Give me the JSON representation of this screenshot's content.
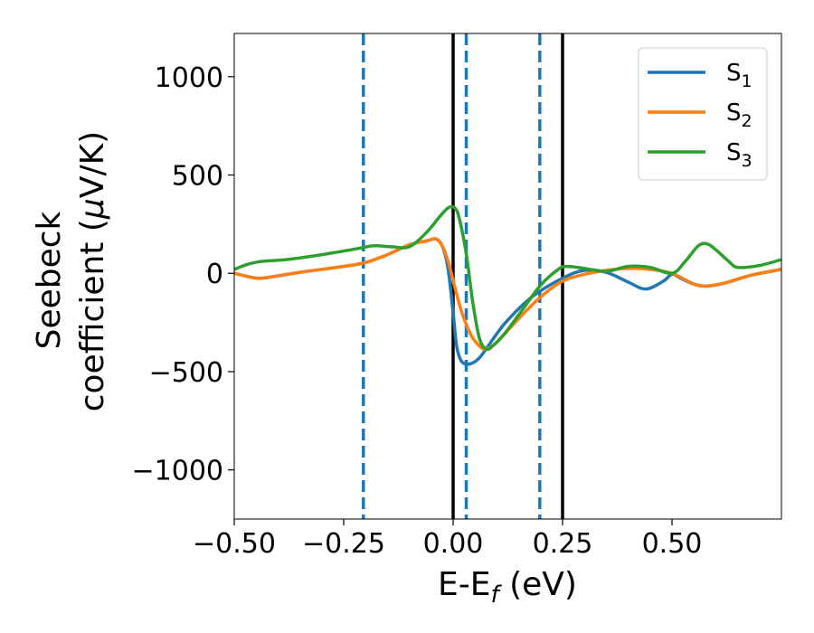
{
  "chart_data": {
    "type": "line",
    "title": "",
    "xlabel": "E-E_f (eV)",
    "xlabel_main": "E-E",
    "xlabel_sub": "f",
    "xlabel_unit": " (eV)",
    "ylabel_line1": "Seebeck",
    "ylabel_line2_text": "coefficient  (",
    "ylabel_mu": "μ",
    "ylabel_unit": "V/K)",
    "xlim": [
      -0.5,
      0.75
    ],
    "ylim": [
      -1250,
      1220
    ],
    "xticks": [
      -0.5,
      -0.25,
      0.0,
      0.25,
      0.5
    ],
    "xtick_labels": [
      "−0.50",
      "−0.25",
      "0.00",
      "0.25",
      "0.50"
    ],
    "yticks": [
      1000,
      500,
      0,
      -500,
      -1000
    ],
    "ytick_labels": [
      "1000",
      "500",
      "0",
      "−500",
      "−1000"
    ],
    "legend_position": "top-right",
    "series": [
      {
        "name": "S_1",
        "label_main": "S",
        "label_sub": "1",
        "color": "#1f77b4",
        "points": [
          [
            -0.5,
            0
          ],
          [
            -0.45,
            -25
          ],
          [
            -0.42,
            -20
          ],
          [
            -0.35,
            5
          ],
          [
            -0.25,
            35
          ],
          [
            -0.2,
            55
          ],
          [
            -0.15,
            95
          ],
          [
            -0.1,
            145
          ],
          [
            -0.06,
            165
          ],
          [
            -0.04,
            175
          ],
          [
            -0.025,
            140
          ],
          [
            -0.012,
            30
          ],
          [
            0.0,
            -200
          ],
          [
            0.008,
            -370
          ],
          [
            0.02,
            -450
          ],
          [
            0.04,
            -460
          ],
          [
            0.06,
            -430
          ],
          [
            0.08,
            -370
          ],
          [
            0.12,
            -250
          ],
          [
            0.18,
            -120
          ],
          [
            0.25,
            -25
          ],
          [
            0.3,
            15
          ],
          [
            0.35,
            5
          ],
          [
            0.4,
            -45
          ],
          [
            0.44,
            -80
          ],
          [
            0.48,
            -40
          ],
          [
            0.5,
            -5
          ],
          [
            0.52,
            -25
          ],
          [
            0.55,
            -55
          ],
          [
            0.58,
            -65
          ],
          [
            0.62,
            -50
          ],
          [
            0.68,
            -10
          ],
          [
            0.75,
            20
          ]
        ]
      },
      {
        "name": "S_2",
        "label_main": "S",
        "label_sub": "2",
        "color": "#ff7f0e",
        "points": [
          [
            -0.5,
            0
          ],
          [
            -0.45,
            -25
          ],
          [
            -0.42,
            -20
          ],
          [
            -0.35,
            5
          ],
          [
            -0.25,
            35
          ],
          [
            -0.2,
            55
          ],
          [
            -0.15,
            95
          ],
          [
            -0.1,
            145
          ],
          [
            -0.06,
            165
          ],
          [
            -0.04,
            175
          ],
          [
            -0.025,
            140
          ],
          [
            -0.01,
            50
          ],
          [
            0.005,
            -80
          ],
          [
            0.02,
            -200
          ],
          [
            0.04,
            -310
          ],
          [
            0.06,
            -370
          ],
          [
            0.075,
            -385
          ],
          [
            0.1,
            -350
          ],
          [
            0.15,
            -230
          ],
          [
            0.2,
            -120
          ],
          [
            0.25,
            -40
          ],
          [
            0.3,
            -5
          ],
          [
            0.35,
            15
          ],
          [
            0.4,
            25
          ],
          [
            0.45,
            20
          ],
          [
            0.5,
            0
          ],
          [
            0.55,
            -55
          ],
          [
            0.58,
            -65
          ],
          [
            0.62,
            -50
          ],
          [
            0.68,
            -10
          ],
          [
            0.75,
            20
          ]
        ]
      },
      {
        "name": "S_3",
        "label_main": "S",
        "label_sub": "3",
        "color": "#2ca02c",
        "points": [
          [
            -0.5,
            20
          ],
          [
            -0.47,
            45
          ],
          [
            -0.44,
            60
          ],
          [
            -0.38,
            70
          ],
          [
            -0.3,
            95
          ],
          [
            -0.22,
            125
          ],
          [
            -0.18,
            140
          ],
          [
            -0.14,
            135
          ],
          [
            -0.1,
            135
          ],
          [
            -0.06,
            210
          ],
          [
            -0.03,
            290
          ],
          [
            -0.01,
            335
          ],
          [
            0.005,
            330
          ],
          [
            0.015,
            270
          ],
          [
            0.03,
            100
          ],
          [
            0.045,
            -150
          ],
          [
            0.06,
            -330
          ],
          [
            0.075,
            -385
          ],
          [
            0.09,
            -370
          ],
          [
            0.12,
            -300
          ],
          [
            0.16,
            -180
          ],
          [
            0.2,
            -60
          ],
          [
            0.24,
            20
          ],
          [
            0.26,
            35
          ],
          [
            0.3,
            25
          ],
          [
            0.35,
            10
          ],
          [
            0.4,
            35
          ],
          [
            0.45,
            30
          ],
          [
            0.5,
            0
          ],
          [
            0.53,
            60
          ],
          [
            0.56,
            140
          ],
          [
            0.58,
            150
          ],
          [
            0.6,
            120
          ],
          [
            0.63,
            60
          ],
          [
            0.65,
            30
          ],
          [
            0.7,
            40
          ],
          [
            0.75,
            70
          ]
        ]
      }
    ],
    "vlines": [
      {
        "x": -0.205,
        "color": "#1f77b4",
        "style": "dashed"
      },
      {
        "x": 0.03,
        "color": "#1f77b4",
        "style": "dashed"
      },
      {
        "x": 0.198,
        "color": "#1f77b4",
        "style": "dashed"
      },
      {
        "x": 0.0,
        "color": "#000000",
        "style": "solid"
      },
      {
        "x": 0.25,
        "color": "#000000",
        "style": "solid"
      }
    ]
  }
}
